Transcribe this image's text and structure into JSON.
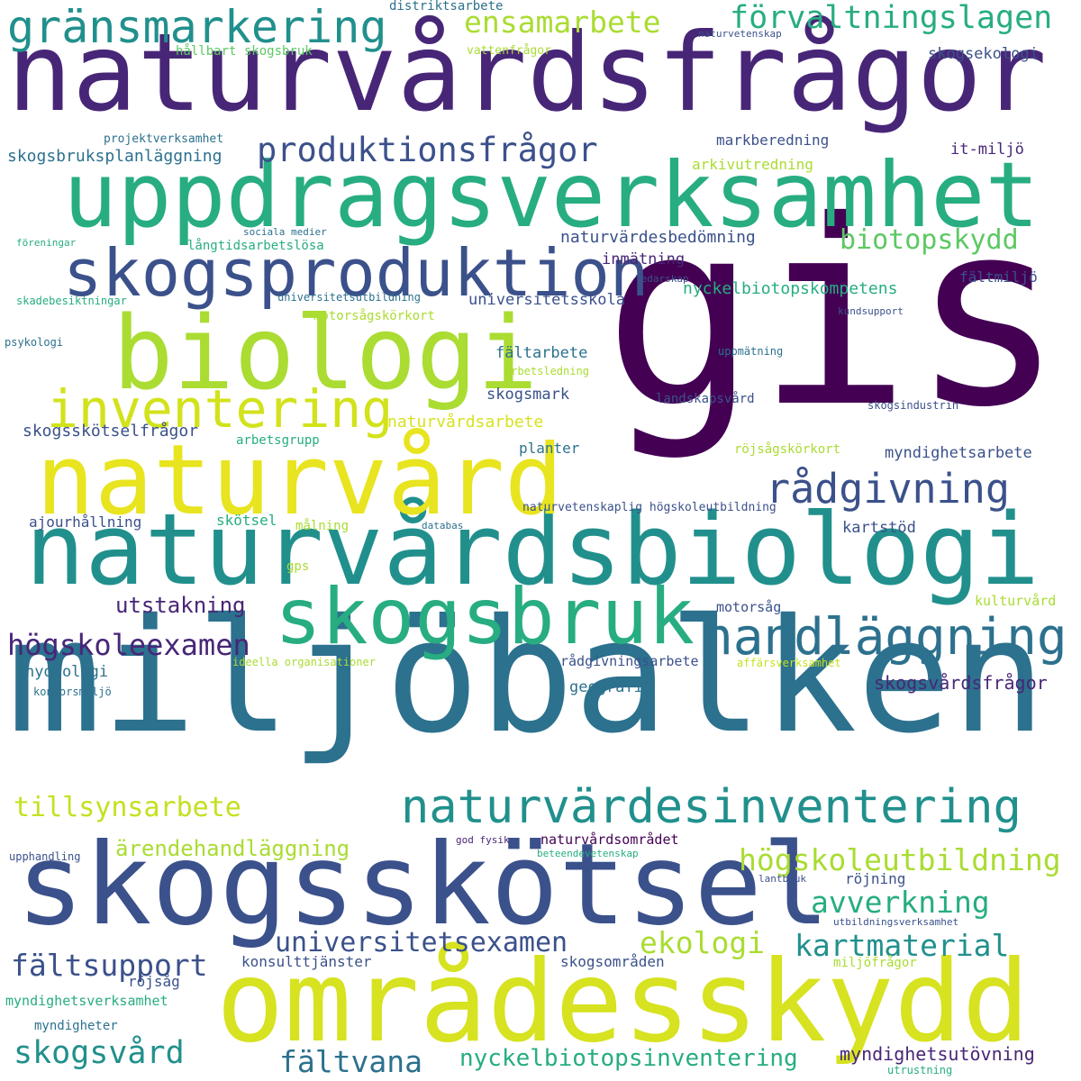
{
  "palette": {
    "dark_purple": "#440154",
    "indigo": "#482677",
    "blue": "#3b518b",
    "steel": "#2c718e",
    "teal": "#21908d",
    "green": "#27ad81",
    "light_green": "#5cc863",
    "lime": "#aadc32",
    "yellow": "#e1e332"
  },
  "words": [
    {
      "text": "gis",
      "color": "#440154"
    },
    {
      "text": "miljöbalken",
      "color": "#2c718e"
    },
    {
      "text": "naturvårdsfrågor",
      "color": "#482677"
    },
    {
      "text": "naturvårdsbiologi",
      "color": "#21908d"
    },
    {
      "text": "uppdragsverksamhet",
      "color": "#27ad81"
    },
    {
      "text": "områdesskydd",
      "color": "#d7e220"
    },
    {
      "text": "skogsskötsel",
      "color": "#3b518b"
    },
    {
      "text": "biologi",
      "color": "#aadc32"
    },
    {
      "text": "naturvård",
      "color": "#e8e41f"
    },
    {
      "text": "skogsproduktion",
      "color": "#3b518b"
    },
    {
      "text": "skogsbruk",
      "color": "#27ad81"
    },
    {
      "text": "naturvärdesinventering",
      "color": "#21908d"
    },
    {
      "text": "inventering",
      "color": "#d2e21b"
    },
    {
      "text": "handläggning",
      "color": "#2c718e"
    },
    {
      "text": "gränsmarkering",
      "color": "#21908d"
    },
    {
      "text": "produktionsfrågor",
      "color": "#3b518b"
    },
    {
      "text": "rådgivning",
      "color": "#3b518b"
    },
    {
      "text": "förvaltningslagen",
      "color": "#27ad81"
    },
    {
      "text": "ensamarbete",
      "color": "#aadc32"
    },
    {
      "text": "högskoleexamen",
      "color": "#482677"
    },
    {
      "text": "tillsynsarbete",
      "color": "#c5e021"
    },
    {
      "text": "högskoleutbildning",
      "color": "#aadc32"
    },
    {
      "text": "avverkning",
      "color": "#27ad81"
    },
    {
      "text": "kartmaterial",
      "color": "#21908d"
    },
    {
      "text": "universitetsexamen",
      "color": "#3b518b"
    },
    {
      "text": "fältsupport",
      "color": "#3b518b"
    },
    {
      "text": "ekologi",
      "color": "#aadc32"
    },
    {
      "text": "skogsvård",
      "color": "#21908d"
    },
    {
      "text": "fältvana",
      "color": "#2c718e"
    },
    {
      "text": "nyckelbiotopsinventering",
      "color": "#27ad81"
    },
    {
      "text": "biotopskydd",
      "color": "#5cc863"
    },
    {
      "text": "utstakning",
      "color": "#482677"
    },
    {
      "text": "ärendehandläggning",
      "color": "#aadc32"
    },
    {
      "text": "skogsvårdsfrågor",
      "color": "#482677"
    },
    {
      "text": "myndighetsutövning",
      "color": "#482677"
    },
    {
      "text": "skogsbruksplanläggning",
      "color": "#2c718e"
    },
    {
      "text": "naturvärdesbedömning",
      "color": "#3b518b"
    },
    {
      "text": "nyckelbiotopskompetens",
      "color": "#27ad81"
    },
    {
      "text": "skogsskötselfrågor",
      "color": "#3b518b"
    },
    {
      "text": "naturvårdsarbete",
      "color": "#d7e220"
    },
    {
      "text": "myndighetsarbete",
      "color": "#3b518b"
    },
    {
      "text": "skogsekologi",
      "color": "#3b518b"
    },
    {
      "text": "markberedning",
      "color": "#3b518b"
    },
    {
      "text": "it-miljö",
      "color": "#482677"
    },
    {
      "text": "arkivutredning",
      "color": "#aadc32"
    },
    {
      "text": "inmätning",
      "color": "#482677"
    },
    {
      "text": "fältmiljö",
      "color": "#3b518b"
    },
    {
      "text": "universitetsskola",
      "color": "#3b518b"
    },
    {
      "text": "fältarbete",
      "color": "#2c718e"
    },
    {
      "text": "skogsmark",
      "color": "#3b518b"
    },
    {
      "text": "planter",
      "color": "#2c718e"
    },
    {
      "text": "skötsel",
      "color": "#27ad81"
    },
    {
      "text": "kartstöd",
      "color": "#3b518b"
    },
    {
      "text": "ajourhållning",
      "color": "#3b518b"
    },
    {
      "text": "hydrologi",
      "color": "#2c718e"
    },
    {
      "text": "geografi",
      "color": "#2c718e"
    },
    {
      "text": "rådgivningsarbete",
      "color": "#3b518b"
    },
    {
      "text": "motorsåg",
      "color": "#3b518b"
    },
    {
      "text": "kulturvård",
      "color": "#aadc32"
    },
    {
      "text": "konsulttjänster",
      "color": "#3b518b"
    },
    {
      "text": "skogsområden",
      "color": "#3b518b"
    },
    {
      "text": "röjsåg",
      "color": "#3b518b"
    },
    {
      "text": "röjning",
      "color": "#3b518b"
    },
    {
      "text": "naturvårdsområdet",
      "color": "#440154"
    },
    {
      "text": "myndighetsverksamhet",
      "color": "#27ad81"
    },
    {
      "text": "myndigheter",
      "color": "#2c718e"
    },
    {
      "text": "miljöfrågor",
      "color": "#aadc32"
    },
    {
      "text": "hållbart skogsbruk",
      "color": "#5cc863"
    },
    {
      "text": "vattenfrågor",
      "color": "#aadc32"
    },
    {
      "text": "distriktsarbete",
      "color": "#2c718e"
    },
    {
      "text": "naturvetenskap",
      "color": "#3b518b"
    },
    {
      "text": "projektverksamhet",
      "color": "#2c718e"
    },
    {
      "text": "sociala medier",
      "color": "#2c718e"
    },
    {
      "text": "föreningar",
      "color": "#27ad81"
    },
    {
      "text": "långtidsarbetslösa",
      "color": "#27ad81"
    },
    {
      "text": "ledarskap",
      "color": "#3b518b"
    },
    {
      "text": "skadebesiktningar",
      "color": "#27ad81"
    },
    {
      "text": "universitetsutbildning",
      "color": "#2c718e"
    },
    {
      "text": "motorsågskörkort",
      "color": "#aadc32"
    },
    {
      "text": "kundsupport",
      "color": "#3b518b"
    },
    {
      "text": "psykologi",
      "color": "#2c718e"
    },
    {
      "text": "uppmätning",
      "color": "#2c718e"
    },
    {
      "text": "arbetsledning",
      "color": "#aadc32"
    },
    {
      "text": "landskapsvård",
      "color": "#3b518b"
    },
    {
      "text": "skogsindustrin",
      "color": "#3b518b"
    },
    {
      "text": "arbetsgrupp",
      "color": "#27ad81"
    },
    {
      "text": "röjsågskörkort",
      "color": "#aadc32"
    },
    {
      "text": "naturvetenskaplig högskoleutbildning",
      "color": "#3b518b"
    },
    {
      "text": "databas",
      "color": "#2c718e"
    },
    {
      "text": "målning",
      "color": "#aadc32"
    },
    {
      "text": "gps",
      "color": "#aadc32"
    },
    {
      "text": "ideella organisationer",
      "color": "#aadc32"
    },
    {
      "text": "affärsverksamhet",
      "color": "#c5e021"
    },
    {
      "text": "kontorsmiljö",
      "color": "#2c718e"
    },
    {
      "text": "upphandling",
      "color": "#3b518b"
    },
    {
      "text": "god fysik",
      "color": "#482677"
    },
    {
      "text": "beteendevetenskap",
      "color": "#27ad81"
    },
    {
      "text": "lantbruk",
      "color": "#3b518b"
    },
    {
      "text": "utbildningsverksamhet",
      "color": "#3b518b"
    },
    {
      "text": "utrustning",
      "color": "#27ad81"
    }
  ]
}
